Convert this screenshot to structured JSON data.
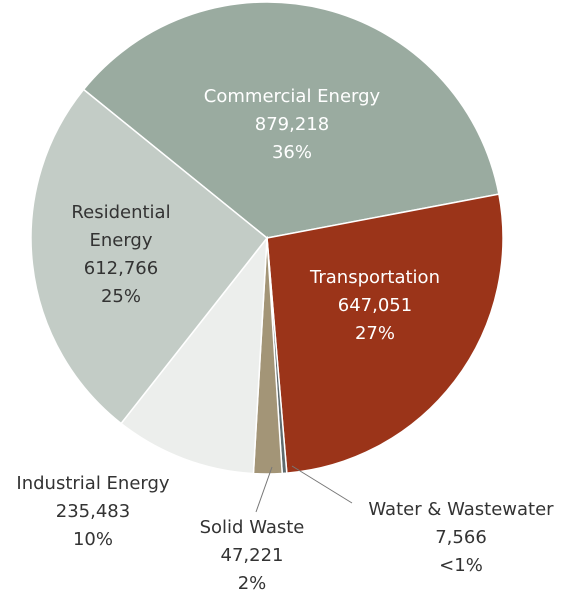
{
  "chart_data": {
    "type": "pie",
    "categories": [
      "Commercial Energy",
      "Transportation",
      "Water & Wastewater",
      "Solid Waste",
      "Industrial Energy",
      "Residential Energy"
    ],
    "values": [
      879218,
      647051,
      7566,
      47221,
      235483,
      612766
    ],
    "value_labels": [
      "879,218",
      "647,051",
      "7,566",
      "47,221",
      "235,483",
      "612,766"
    ],
    "percent_labels": [
      "36%",
      "27%",
      "<1%",
      "2%",
      "10%",
      "25%"
    ],
    "colors": [
      "#9aaba0",
      "#9b3419",
      "#5f6b6e",
      "#a39577",
      "#eceeec",
      "#c3ccc6"
    ]
  }
}
